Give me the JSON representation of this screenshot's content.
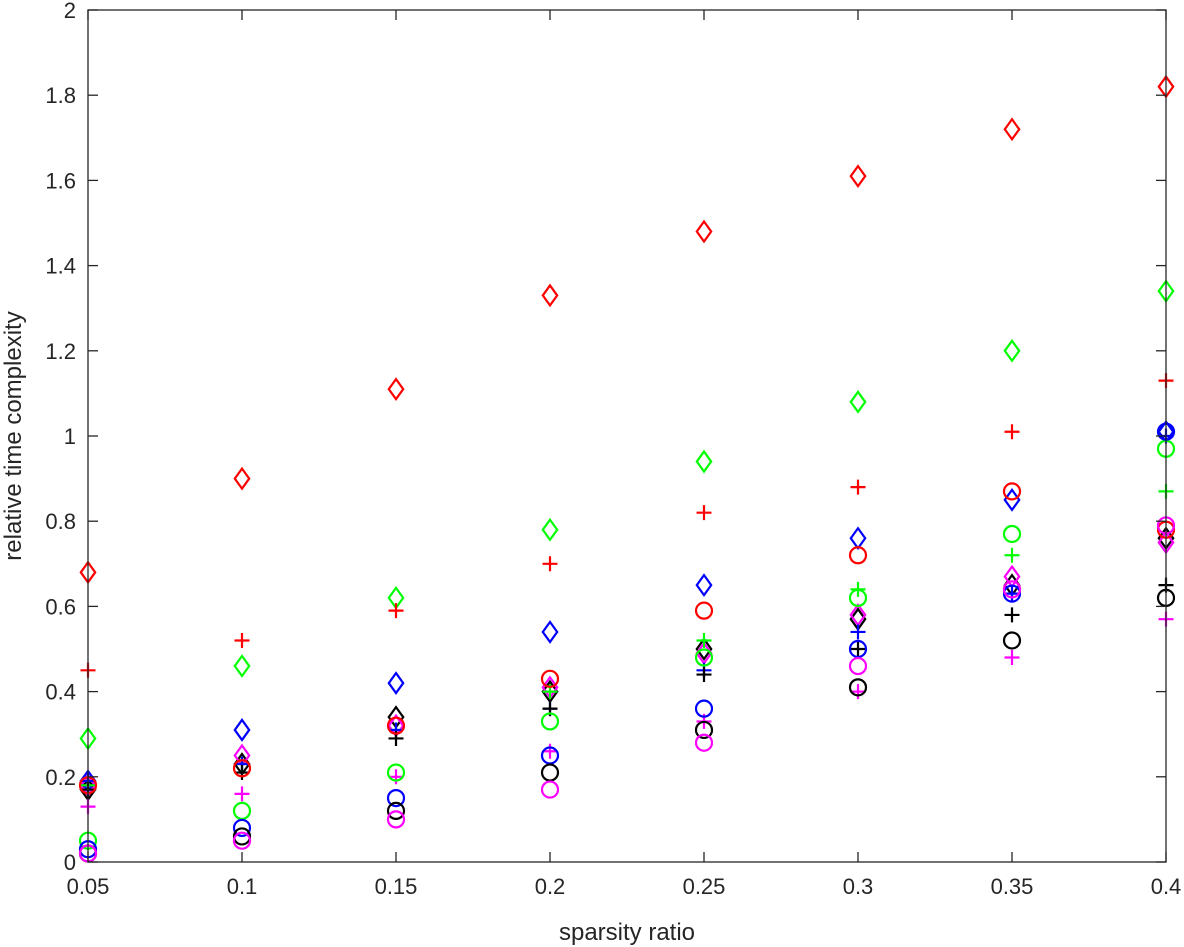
{
  "chart_data": {
    "type": "scatter",
    "xlabel": "sparsity ratio",
    "ylabel": "relative time complexity",
    "xlim": [
      0.05,
      0.4
    ],
    "ylim": [
      0,
      2
    ],
    "grid": false,
    "x_ticks": [
      "0.05",
      "0.1",
      "0.15",
      "0.2",
      "0.25",
      "0.3",
      "0.35",
      "0.4"
    ],
    "y_ticks": [
      "0",
      "0.2",
      "0.4",
      "0.6",
      "0.8",
      "1",
      "1.2",
      "1.4",
      "1.6",
      "1.8",
      "2"
    ],
    "x": [
      0.05,
      0.1,
      0.15,
      0.2,
      0.25,
      0.3,
      0.35,
      0.4
    ],
    "series": [
      {
        "color": "#ff0000",
        "marker": "diamond",
        "values": [
          0.68,
          0.9,
          1.11,
          1.33,
          1.48,
          1.61,
          1.72,
          1.82
        ]
      },
      {
        "color": "#00ff00",
        "marker": "diamond",
        "values": [
          0.29,
          0.46,
          0.62,
          0.78,
          0.94,
          1.08,
          1.2,
          1.34
        ]
      },
      {
        "color": "#0000ff",
        "marker": "diamond",
        "values": [
          0.19,
          0.31,
          0.42,
          0.54,
          0.65,
          0.76,
          0.85,
          1.01
        ]
      },
      {
        "color": "#000000",
        "marker": "diamond",
        "values": [
          0.17,
          0.23,
          0.34,
          0.4,
          0.5,
          0.57,
          0.65,
          0.76
        ]
      },
      {
        "color": "#ff00ff",
        "marker": "diamond",
        "values": [
          0.18,
          0.25,
          0.32,
          0.41,
          0.49,
          0.58,
          0.67,
          0.75
        ]
      },
      {
        "color": "#ff0000",
        "marker": "plus",
        "values": [
          0.45,
          0.52,
          0.59,
          0.7,
          0.82,
          0.88,
          1.01,
          1.13
        ]
      },
      {
        "color": "#00ff00",
        "marker": "plus",
        "values": [
          0.18,
          0.23,
          0.31,
          0.4,
          0.52,
          0.64,
          0.72,
          0.87
        ]
      },
      {
        "color": "#0000ff",
        "marker": "plus",
        "values": [
          0.19,
          0.23,
          0.31,
          0.36,
          0.45,
          0.54,
          0.63,
          1.0
        ]
      },
      {
        "color": "#000000",
        "marker": "plus",
        "values": [
          0.17,
          0.21,
          0.29,
          0.36,
          0.44,
          0.5,
          0.58,
          0.65
        ]
      },
      {
        "color": "#ff00ff",
        "marker": "plus",
        "values": [
          0.13,
          0.16,
          0.2,
          0.26,
          0.33,
          0.4,
          0.48,
          0.57
        ]
      },
      {
        "color": "#ff0000",
        "marker": "circle",
        "values": [
          0.18,
          0.22,
          0.32,
          0.43,
          0.59,
          0.72,
          0.87,
          0.78
        ]
      },
      {
        "color": "#00ff00",
        "marker": "circle",
        "values": [
          0.05,
          0.12,
          0.21,
          0.33,
          0.48,
          0.62,
          0.77,
          0.97
        ]
      },
      {
        "color": "#0000ff",
        "marker": "circle",
        "values": [
          0.03,
          0.08,
          0.15,
          0.25,
          0.36,
          0.5,
          0.63,
          1.01
        ]
      },
      {
        "color": "#000000",
        "marker": "circle",
        "values": [
          0.02,
          0.06,
          0.12,
          0.21,
          0.31,
          0.41,
          0.52,
          0.62
        ]
      },
      {
        "color": "#ff00ff",
        "marker": "circle",
        "values": [
          0.02,
          0.05,
          0.1,
          0.17,
          0.28,
          0.46,
          0.64,
          0.79
        ]
      }
    ]
  }
}
